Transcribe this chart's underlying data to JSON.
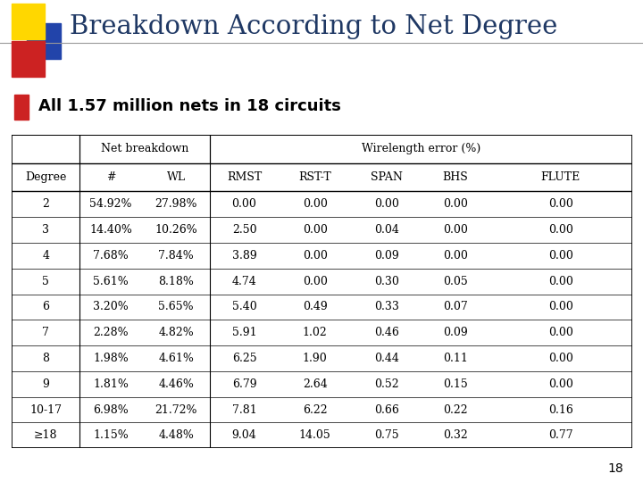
{
  "title": "Breakdown According to Net Degree",
  "subtitle": "All 1.57 million nets in 18 circuits",
  "page_number": "18",
  "col_group1_label": "Net breakdown",
  "col_group2_label": "Wirelength error (%)",
  "col_headers": [
    "Degree",
    "#",
    "WL",
    "RMST",
    "RST-T",
    "SPAN",
    "BHS",
    "FLUTE"
  ],
  "rows": [
    [
      "2",
      "54.92%",
      "27.98%",
      "0.00",
      "0.00",
      "0.00",
      "0.00",
      "0.00"
    ],
    [
      "3",
      "14.40%",
      "10.26%",
      "2.50",
      "0.00",
      "0.04",
      "0.00",
      "0.00"
    ],
    [
      "4",
      "7.68%",
      "7.84%",
      "3.89",
      "0.00",
      "0.09",
      "0.00",
      "0.00"
    ],
    [
      "5",
      "5.61%",
      "8.18%",
      "4.74",
      "0.00",
      "0.30",
      "0.05",
      "0.00"
    ],
    [
      "6",
      "3.20%",
      "5.65%",
      "5.40",
      "0.49",
      "0.33",
      "0.07",
      "0.00"
    ],
    [
      "7",
      "2.28%",
      "4.82%",
      "5.91",
      "1.02",
      "0.46",
      "0.09",
      "0.00"
    ],
    [
      "8",
      "1.98%",
      "4.61%",
      "6.25",
      "1.90",
      "0.44",
      "0.11",
      "0.00"
    ],
    [
      "9",
      "1.81%",
      "4.46%",
      "6.79",
      "2.64",
      "0.52",
      "0.15",
      "0.00"
    ],
    [
      "10-17",
      "6.98%",
      "21.72%",
      "7.81",
      "6.22",
      "0.66",
      "0.22",
      "0.16"
    ],
    [
      ">=18",
      "1.15%",
      "4.48%",
      "9.04",
      "14.05",
      "0.75",
      "0.32",
      "0.77"
    ]
  ],
  "bg_color": "#ffffff",
  "title_color": "#1F3864",
  "logo_yellow": "#FFD700",
  "logo_red": "#CC2222",
  "logo_blue": "#2244AA",
  "bullet_color": "#CC2222",
  "table_border_color": "#000000"
}
